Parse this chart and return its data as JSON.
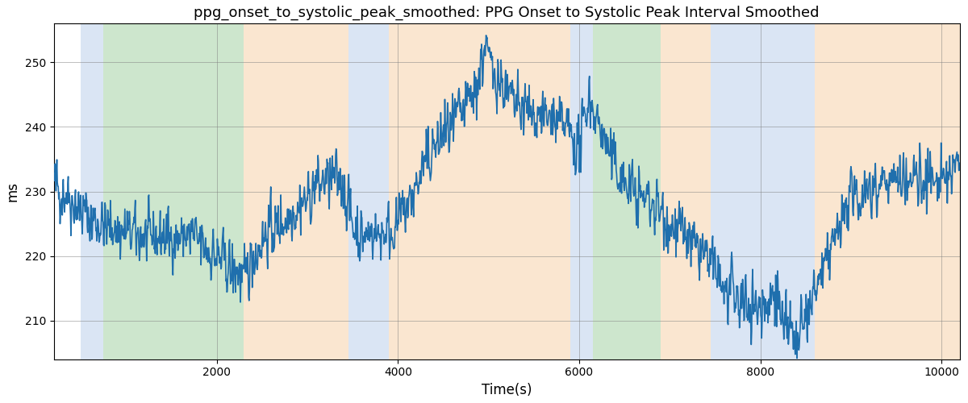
{
  "title": "ppg_onset_to_systolic_peak_smoothed: PPG Onset to Systolic Peak Interval Smoothed",
  "xlabel": "Time(s)",
  "ylabel": "ms",
  "xlim": [
    200,
    10200
  ],
  "ylim": [
    204,
    256
  ],
  "yticks": [
    210,
    220,
    230,
    240,
    250
  ],
  "xticks": [
    2000,
    4000,
    6000,
    8000,
    10000
  ],
  "line_color": "#1f6fad",
  "line_width": 1.2,
  "bg_regions": [
    {
      "xmin": 500,
      "xmax": 750,
      "color": "#aec6e8",
      "alpha": 0.45
    },
    {
      "xmin": 750,
      "xmax": 2300,
      "color": "#90c990",
      "alpha": 0.45
    },
    {
      "xmin": 2300,
      "xmax": 3450,
      "color": "#f5c897",
      "alpha": 0.45
    },
    {
      "xmin": 3450,
      "xmax": 3900,
      "color": "#aec6e8",
      "alpha": 0.45
    },
    {
      "xmin": 3900,
      "xmax": 5900,
      "color": "#f5c897",
      "alpha": 0.45
    },
    {
      "xmin": 5900,
      "xmax": 6150,
      "color": "#aec6e8",
      "alpha": 0.45
    },
    {
      "xmin": 6150,
      "xmax": 6900,
      "color": "#90c990",
      "alpha": 0.45
    },
    {
      "xmin": 6900,
      "xmax": 7450,
      "color": "#f5c897",
      "alpha": 0.45
    },
    {
      "xmin": 7450,
      "xmax": 8600,
      "color": "#aec6e8",
      "alpha": 0.45
    },
    {
      "xmin": 8600,
      "xmax": 10200,
      "color": "#f5c897",
      "alpha": 0.45
    }
  ],
  "seed": 42,
  "n_points": 2000
}
